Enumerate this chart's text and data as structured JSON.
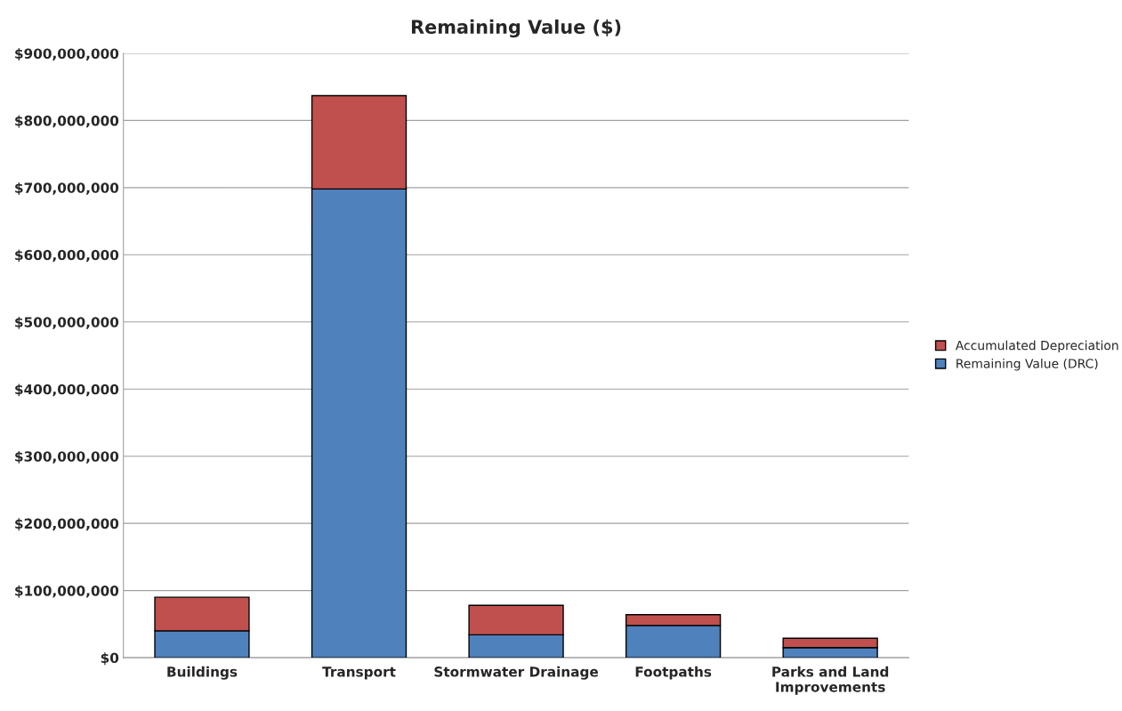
{
  "chart_data": {
    "type": "bar",
    "title": "Remaining Value ($)",
    "stacked": true,
    "categories": [
      "Buildings",
      "Transport",
      "Stormwater Drainage",
      "Footpaths",
      "Parks and Land\nImprovements"
    ],
    "series": [
      {
        "name": "Remaining Value (DRC)",
        "color": "#4f81bd",
        "values": [
          40000000,
          698000000,
          34000000,
          48000000,
          15000000
        ]
      },
      {
        "name": "Accumulated Depreciation",
        "color": "#c0504d",
        "values": [
          50000000,
          139000000,
          44000000,
          16000000,
          14000000
        ]
      }
    ],
    "ylim": [
      0,
      900000000
    ],
    "yticks": [
      {
        "value": 0,
        "label": "$0"
      },
      {
        "value": 100000000,
        "label": "$100,000,000"
      },
      {
        "value": 200000000,
        "label": "$200,000,000"
      },
      {
        "value": 300000000,
        "label": "$300,000,000"
      },
      {
        "value": 400000000,
        "label": "$400,000,000"
      },
      {
        "value": 500000000,
        "label": "$500,000,000"
      },
      {
        "value": 600000000,
        "label": "$600,000,000"
      },
      {
        "value": 700000000,
        "label": "$700,000,000"
      },
      {
        "value": 800000000,
        "label": "$800,000,000"
      },
      {
        "value": 900000000,
        "label": "$900,000,000"
      }
    ],
    "grid": "y",
    "legend": "right"
  }
}
